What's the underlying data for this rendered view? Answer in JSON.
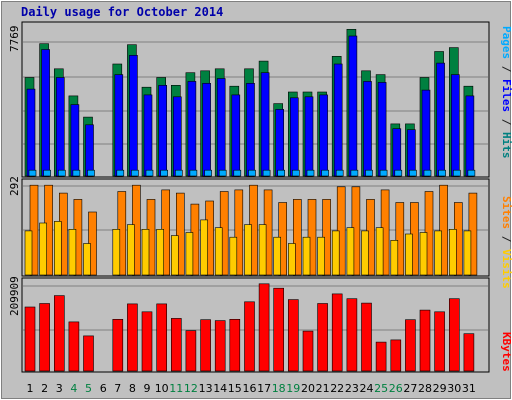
{
  "chart_data": {
    "type": "bar",
    "title": "Daily usage for October 2014",
    "categories": [
      "1",
      "2",
      "3",
      "4",
      "5",
      "6",
      "7",
      "8",
      "9",
      "10",
      "11",
      "12",
      "13",
      "14",
      "15",
      "16",
      "17",
      "18",
      "19",
      "20",
      "21",
      "22",
      "23",
      "24",
      "25",
      "26",
      "27",
      "28",
      "29",
      "30",
      "31"
    ],
    "weekend_days": [
      "4",
      "5",
      "11",
      "12",
      "18",
      "19",
      "25",
      "26"
    ],
    "legend": {
      "top": [
        {
          "name": "Pages",
          "color": "#00aaff"
        },
        {
          "name": " / ",
          "color": "#222222"
        },
        {
          "name": "Files",
          "color": "#0000ff"
        },
        {
          "name": " / ",
          "color": "#222222"
        },
        {
          "name": "Hits",
          "color": "#008080"
        }
      ],
      "middle": [
        {
          "name": "Sites",
          "color": "#ff8000"
        },
        {
          "name": " / ",
          "color": "#222222"
        },
        {
          "name": "Visits",
          "color": "#ffcc00"
        }
      ],
      "bottom": [
        {
          "name": "KBytes",
          "color": "#ff0000"
        }
      ]
    },
    "panels": [
      {
        "id": "hits",
        "max_label": "7769",
        "ylim": [
          0,
          7769
        ],
        "series": [
          {
            "name": "Hits",
            "color": "#008040",
            "values": [
              5100,
              6850,
              5550,
              4150,
              3050,
              0,
              5800,
              6800,
              4600,
              5100,
              4700,
              5350,
              5450,
              5550,
              4650,
              5550,
              5950,
              3750,
              4350,
              4350,
              4350,
              6200,
              7600,
              5450,
              5250,
              2700,
              2700,
              5100,
              6450,
              6650,
              4650
            ]
          },
          {
            "name": "Files",
            "color": "#0000ff",
            "values": [
              4500,
              6550,
              5100,
              3700,
              2650,
              0,
              5250,
              6250,
              4200,
              4700,
              4100,
              4900,
              4800,
              5050,
              4200,
              4800,
              5350,
              3450,
              4050,
              4100,
              4200,
              5800,
              7250,
              4900,
              4850,
              2450,
              2400,
              4450,
              5850,
              5250,
              4150
            ]
          },
          {
            "name": "Pages",
            "color": "#00aaff",
            "values": [
              300,
              300,
              300,
              300,
              300,
              0,
              300,
              300,
              300,
              300,
              300,
              300,
              300,
              300,
              300,
              300,
              300,
              300,
              300,
              300,
              300,
              300,
              300,
              300,
              300,
              300,
              300,
              300,
              300,
              300,
              300
            ]
          }
        ]
      },
      {
        "id": "sites",
        "max_label": "292",
        "ylim": [
          0,
          292
        ],
        "series": [
          {
            "name": "Sites",
            "color": "#ff8000",
            "values": [
              285,
              285,
              260,
              240,
              200,
              0,
              265,
              285,
              240,
              270,
              260,
              225,
              235,
              265,
              270,
              285,
              270,
              230,
              240,
              240,
              240,
              280,
              280,
              240,
              270,
              230,
              230,
              265,
              285,
              230,
              260
            ]
          },
          {
            "name": "Visits",
            "color": "#ffcc00",
            "values": [
              140,
              165,
              170,
              145,
              100,
              0,
              145,
              160,
              145,
              145,
              125,
              135,
              175,
              150,
              120,
              160,
              160,
              120,
              100,
              120,
              120,
              140,
              150,
              140,
              150,
              110,
              130,
              135,
              140,
              145,
              140
            ]
          }
        ]
      },
      {
        "id": "kbytes",
        "max_label": "209909",
        "ylim": [
          0,
          209909
        ],
        "series": [
          {
            "name": "KBytes",
            "color": "#ff0000",
            "values": [
              146000,
              154000,
              172000,
              112000,
              80000,
              0,
              118000,
              153000,
              135000,
              153000,
              120000,
              92000,
              117000,
              115000,
              118000,
              158000,
              199000,
              189000,
              163000,
              91000,
              154000,
              176000,
              165000,
              155000,
              66000,
              71000,
              117000,
              139000,
              135000,
              165000,
              85000
            ]
          }
        ]
      }
    ]
  }
}
